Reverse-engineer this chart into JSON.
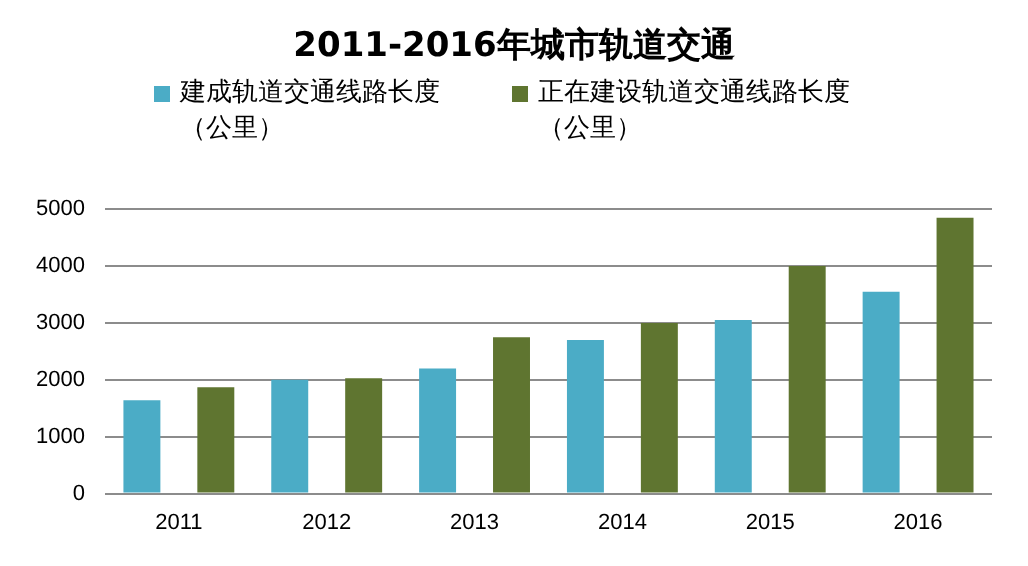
{
  "chart_data": {
    "type": "bar",
    "title": "2011-2016年城市轨道交通",
    "categories": [
      "2011",
      "2012",
      "2013",
      "2014",
      "2015",
      "2016"
    ],
    "series": [
      {
        "name": "建成轨道交通线路长度（公里）",
        "color": "#4bacc6",
        "values": [
          1640,
          2000,
          2200,
          2700,
          3050,
          3550
        ]
      },
      {
        "name": "正在建设轨道交通线路长度（公里）",
        "color": "#5f7530",
        "values": [
          1870,
          2030,
          2750,
          3000,
          4000,
          4850
        ]
      }
    ],
    "ylim": [
      0,
      5000
    ],
    "yticks": [
      0,
      1000,
      2000,
      3000,
      4000,
      5000
    ],
    "grid": "y",
    "legend": "top"
  }
}
